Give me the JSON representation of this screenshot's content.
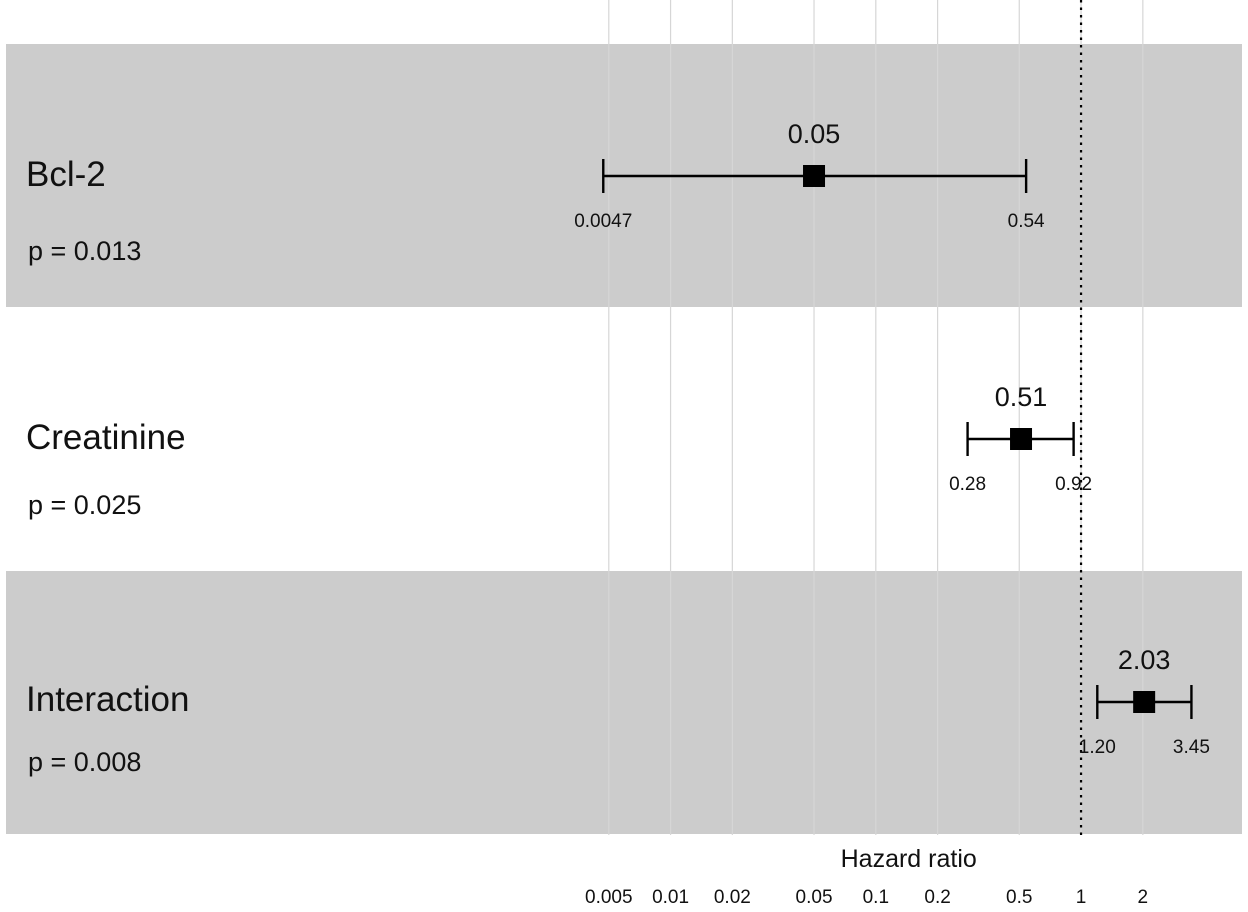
{
  "chart_data": {
    "type": "forest",
    "xlabel": "Hazard ratio",
    "xscale": "log",
    "xlim": [
      0.0025,
      5.2
    ],
    "x_ticks": [
      0.005,
      0.01,
      0.02,
      0.05,
      0.1,
      0.2,
      0.5,
      1,
      2
    ],
    "x_tick_labels": [
      "0.005",
      "0.01",
      "0.02",
      "0.05",
      "0.1",
      "0.2",
      "0.5",
      "1",
      "2"
    ],
    "reference_line": 1,
    "grid": true,
    "rows": [
      {
        "label": "Bcl-2",
        "p_text": "p = 0.013",
        "hr": 0.05,
        "hr_label": "0.05",
        "ci_low": 0.0047,
        "ci_low_label": "0.0047",
        "ci_high": 0.54,
        "ci_high_label": "0.54",
        "shaded": true
      },
      {
        "label": "Creatinine",
        "p_text": "p = 0.025",
        "hr": 0.51,
        "hr_label": "0.51",
        "ci_low": 0.28,
        "ci_low_label": "0.28",
        "ci_high": 0.92,
        "ci_high_label": "0.92",
        "shaded": false
      },
      {
        "label": "Interaction",
        "p_text": "p = 0.008",
        "hr": 2.03,
        "hr_label": "2.03",
        "ci_low": 1.2,
        "ci_low_label": "1.20",
        "ci_high": 3.45,
        "ci_high_label": "3.45",
        "shaded": true
      }
    ],
    "colors": {
      "band": "#cccccc",
      "grid": "#d6d6d6",
      "mark": "#000000",
      "text": "#111111"
    }
  }
}
